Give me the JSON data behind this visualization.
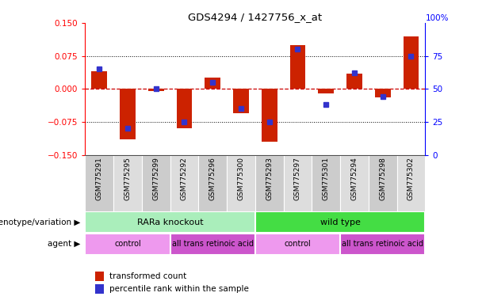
{
  "title": "GDS4294 / 1427756_x_at",
  "samples": [
    "GSM775291",
    "GSM775295",
    "GSM775299",
    "GSM775292",
    "GSM775296",
    "GSM775300",
    "GSM775293",
    "GSM775297",
    "GSM775301",
    "GSM775294",
    "GSM775298",
    "GSM775302"
  ],
  "bar_values": [
    0.04,
    -0.115,
    -0.005,
    -0.09,
    0.025,
    -0.055,
    -0.12,
    0.1,
    -0.01,
    0.035,
    -0.02,
    0.12
  ],
  "dot_values_pct": [
    65,
    20,
    50,
    25,
    55,
    35,
    25,
    80,
    38,
    62,
    44,
    75
  ],
  "ylim_left": [
    -0.15,
    0.15
  ],
  "ylim_right": [
    0,
    100
  ],
  "yticks_left": [
    -0.15,
    -0.075,
    0,
    0.075,
    0.15
  ],
  "yticks_right": [
    0,
    25,
    50,
    75,
    100
  ],
  "bar_color": "#cc2200",
  "dot_color": "#3333cc",
  "zero_line_color": "#cc0000",
  "genotype_groups": [
    {
      "label": "RARa knockout",
      "start": 0,
      "end": 6,
      "color": "#aaeebb"
    },
    {
      "label": "wild type",
      "start": 6,
      "end": 12,
      "color": "#44dd44"
    }
  ],
  "agent_groups": [
    {
      "label": "control",
      "start": 0,
      "end": 3,
      "color": "#ee99ee"
    },
    {
      "label": "all trans retinoic acid",
      "start": 3,
      "end": 6,
      "color": "#cc55cc"
    },
    {
      "label": "control",
      "start": 6,
      "end": 9,
      "color": "#ee99ee"
    },
    {
      "label": "all trans retinoic acid",
      "start": 9,
      "end": 12,
      "color": "#cc55cc"
    }
  ],
  "legend_items": [
    {
      "label": "transformed count",
      "color": "#cc2200"
    },
    {
      "label": "percentile rank within the sample",
      "color": "#3333cc"
    }
  ],
  "genotype_label": "genotype/variation",
  "agent_label": "agent"
}
